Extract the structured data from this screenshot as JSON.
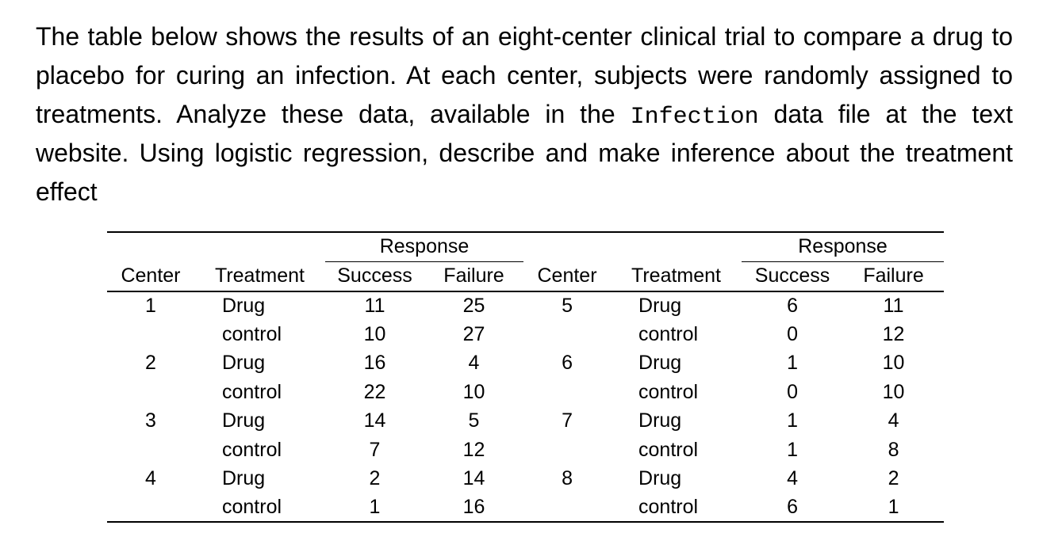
{
  "page": {
    "background_color": "#ffffff",
    "text_color": "#000000"
  },
  "problem_text": {
    "line1": "The table below shows the results of an eight-center clinical trial to compare a drug to",
    "line2": "placebo for curing an infection. At each center, subjects were randomly assigned to",
    "line3_pre": "treatments. Analyze these data, available in the",
    "line3_code": "Infection",
    "line3_post": "data file at the text",
    "line4": "website. Using logistic regression, describe and make inference about the treatment",
    "line5": "effect"
  },
  "table": {
    "response_label": "Response",
    "headers": {
      "center": "Center",
      "treatment": "Treatment",
      "success": "Success",
      "failure": "Failure"
    },
    "left_rows": [
      {
        "center": "1",
        "treatment": "Drug",
        "success": "11",
        "failure": "25"
      },
      {
        "center": "",
        "treatment": "control",
        "success": "10",
        "failure": "27"
      },
      {
        "center": "2",
        "treatment": "Drug",
        "success": "16",
        "failure": "4"
      },
      {
        "center": "",
        "treatment": "control",
        "success": "22",
        "failure": "10"
      },
      {
        "center": "3",
        "treatment": "Drug",
        "success": "14",
        "failure": "5"
      },
      {
        "center": "",
        "treatment": "control",
        "success": "7",
        "failure": "12"
      },
      {
        "center": "4",
        "treatment": "Drug",
        "success": "2",
        "failure": "14"
      },
      {
        "center": "",
        "treatment": "control",
        "success": "1",
        "failure": "16"
      }
    ],
    "right_rows": [
      {
        "center": "5",
        "treatment": "Drug",
        "success": "6",
        "failure": "11"
      },
      {
        "center": "",
        "treatment": "control",
        "success": "0",
        "failure": "12"
      },
      {
        "center": "6",
        "treatment": "Drug",
        "success": "1",
        "failure": "10"
      },
      {
        "center": "",
        "treatment": "control",
        "success": "0",
        "failure": "10"
      },
      {
        "center": "7",
        "treatment": "Drug",
        "success": "1",
        "failure": "4"
      },
      {
        "center": "",
        "treatment": "control",
        "success": "1",
        "failure": "8"
      },
      {
        "center": "8",
        "treatment": "Drug",
        "success": "4",
        "failure": "2"
      },
      {
        "center": "",
        "treatment": "control",
        "success": "6",
        "failure": "1"
      }
    ]
  }
}
